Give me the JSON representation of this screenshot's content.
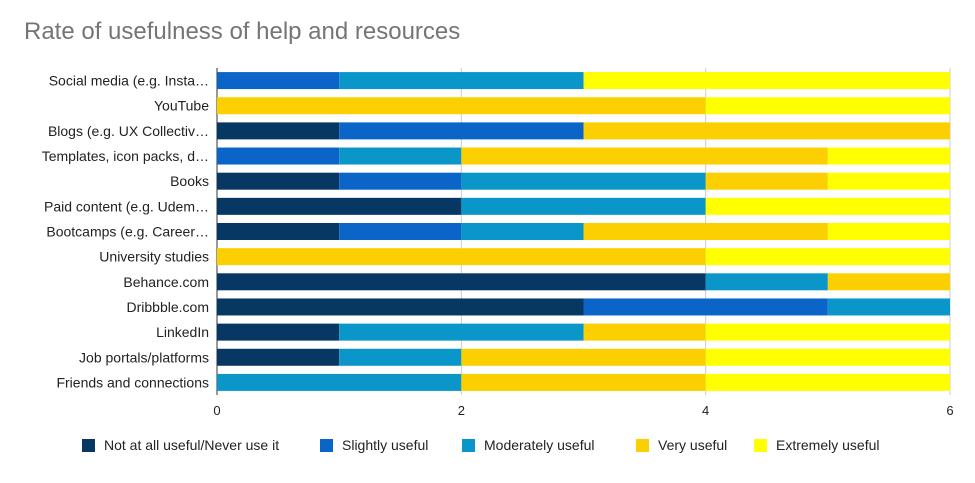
{
  "chart_data": {
    "type": "bar",
    "orientation": "horizontal",
    "stacked": true,
    "title": "Rate of usefulness of help and resources",
    "xlabel": "",
    "ylabel": "",
    "xlim": [
      0,
      6
    ],
    "xticks": [
      "0",
      "2",
      "4",
      "6"
    ],
    "grid": true,
    "legend_position": "bottom",
    "categories": [
      "Social media (e.g. Insta…",
      "YouTube",
      "Blogs (e.g. UX Collectiv…",
      "Templates, icon packs, d…",
      "Books",
      "Paid content (e.g. Udem…",
      "Bootcamps (e.g. Career…",
      "University studies",
      "Behance.com",
      "Dribbble.com",
      "LinkedIn",
      "Job portals/platforms",
      "Friends and connections"
    ],
    "series": [
      {
        "name": "Not at all useful/Never use it",
        "color": "#073763",
        "values": [
          0,
          0,
          1,
          0,
          1,
          2,
          1,
          0,
          4,
          3,
          1,
          1,
          0
        ]
      },
      {
        "name": "Slightly useful",
        "color": "#0b65c9",
        "values": [
          1,
          0,
          2,
          1,
          1,
          0,
          1,
          0,
          0,
          2,
          0,
          0,
          0
        ]
      },
      {
        "name": "Moderately useful",
        "color": "#0b96c9",
        "values": [
          2,
          0,
          0,
          1,
          2,
          2,
          1,
          0,
          1,
          1,
          2,
          1,
          2
        ]
      },
      {
        "name": "Very useful",
        "color": "#fcd000",
        "values": [
          0,
          4,
          3,
          3,
          1,
          0,
          2,
          4,
          1,
          0,
          1,
          2,
          2
        ]
      },
      {
        "name": "Extremely useful",
        "color": "#ffff00",
        "values": [
          3,
          2,
          0,
          1,
          1,
          2,
          1,
          2,
          0,
          0,
          2,
          2,
          2
        ]
      }
    ]
  }
}
